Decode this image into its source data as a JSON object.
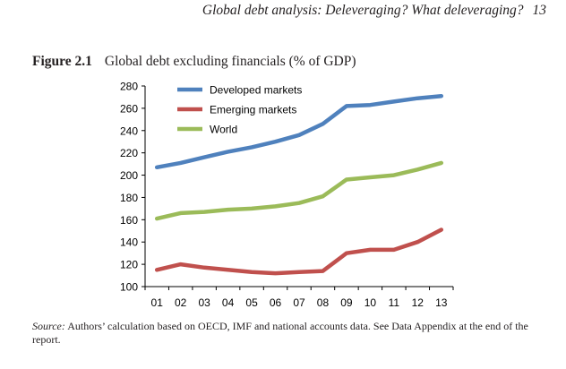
{
  "header": {
    "running_title": "Global debt analysis: Deleveraging? What deleveraging?",
    "page_number": "13"
  },
  "figure": {
    "label": "Figure 2.1",
    "title": "Global debt excluding financials (% of GDP)"
  },
  "source": {
    "label": "Source:",
    "text": "Authors’ calculation based on OECD, IMF and national accounts data. See Data Appendix at the end of the report."
  },
  "chart_data": {
    "type": "line",
    "x": [
      "01",
      "02",
      "03",
      "04",
      "05",
      "06",
      "07",
      "08",
      "09",
      "10",
      "11",
      "12",
      "13"
    ],
    "ylim": [
      100,
      280
    ],
    "yticks": [
      100,
      120,
      140,
      160,
      180,
      200,
      220,
      240,
      260,
      280
    ],
    "grid": false,
    "legend_position": "top-left",
    "series": [
      {
        "name": "Developed markets",
        "color": "#4f81bd",
        "values": [
          207,
          211,
          216,
          221,
          225,
          230,
          236,
          246,
          262,
          263,
          266,
          269,
          271
        ]
      },
      {
        "name": "Emerging markets",
        "color": "#c0504d",
        "values": [
          115,
          120,
          117,
          115,
          113,
          112,
          113,
          114,
          130,
          133,
          133,
          140,
          151
        ]
      },
      {
        "name": "World",
        "color": "#9bbb59",
        "values": [
          161,
          166,
          167,
          169,
          170,
          172,
          175,
          181,
          196,
          198,
          200,
          205,
          211
        ]
      }
    ]
  }
}
